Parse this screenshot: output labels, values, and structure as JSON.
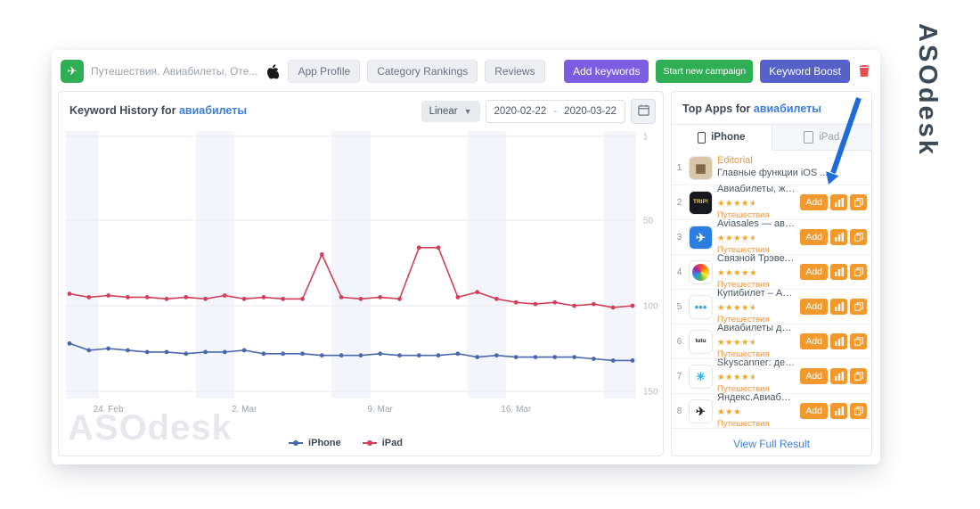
{
  "logo": {
    "text": "ASOdesk"
  },
  "colors": {
    "accent_blue": "#3b7dd8",
    "orange": "#f2992e",
    "purple": "#7c5ce0",
    "green": "#2fae54",
    "indigo": "#5560c8",
    "red": "#e05252",
    "iphone_line": "#4a67ad",
    "ipad_line": "#d23f58"
  },
  "header": {
    "app_title": "Путешествия. Авиабилеты, Оте...",
    "nav": [
      {
        "label": "App Profile"
      },
      {
        "label": "Category Rankings"
      },
      {
        "label": "Reviews"
      }
    ],
    "add_keywords": "Add keywords",
    "start_campaign": "Start new campaign",
    "keyword_boost": "Keyword Boost"
  },
  "chart_panel": {
    "title_prefix": "Keyword History for",
    "keyword": "авиабилеты",
    "scale": "Linear",
    "date_from": "2020-02-22",
    "date_sep": "-",
    "date_to": "2020-03-22",
    "watermark": "ASOdesk"
  },
  "chart_data": {
    "type": "line",
    "title": "Keyword History for авиабилеты",
    "x": [
      "2020-02-22",
      "2020-02-23",
      "2020-02-24",
      "2020-02-25",
      "2020-02-26",
      "2020-02-27",
      "2020-02-28",
      "2020-02-29",
      "2020-03-01",
      "2020-03-02",
      "2020-03-03",
      "2020-03-04",
      "2020-03-05",
      "2020-03-06",
      "2020-03-07",
      "2020-03-08",
      "2020-03-09",
      "2020-03-10",
      "2020-03-11",
      "2020-03-12",
      "2020-03-13",
      "2020-03-14",
      "2020-03-15",
      "2020-03-16",
      "2020-03-17",
      "2020-03-18",
      "2020-03-19",
      "2020-03-20",
      "2020-03-21",
      "2020-03-22"
    ],
    "y_inverted": true,
    "ylim": [
      1,
      150
    ],
    "y_ticks": [
      1,
      50,
      100,
      150
    ],
    "x_ticks": [
      {
        "index": 2,
        "label": "24. Feb"
      },
      {
        "index": 9,
        "label": "2. Mar"
      },
      {
        "index": 16,
        "label": "9. Mar"
      },
      {
        "index": 23,
        "label": "16. Mar"
      }
    ],
    "weekend_bands": [
      [
        0,
        1
      ],
      [
        7,
        8
      ],
      [
        14,
        15
      ],
      [
        21,
        22
      ],
      [
        28,
        29
      ]
    ],
    "grid": true,
    "legend_position": "bottom",
    "series": [
      {
        "name": "iPhone",
        "color": "#4a67ad",
        "values": [
          122,
          126,
          125,
          126,
          127,
          127,
          128,
          127,
          127,
          126,
          128,
          128,
          128,
          129,
          129,
          129,
          128,
          129,
          129,
          129,
          128,
          130,
          129,
          130,
          130,
          130,
          130,
          131,
          132,
          132
        ]
      },
      {
        "name": "iPad",
        "color": "#d23f58",
        "values": [
          93,
          95,
          94,
          95,
          95,
          96,
          95,
          96,
          94,
          96,
          95,
          96,
          96,
          70,
          95,
          96,
          95,
          96,
          66,
          66,
          95,
          92,
          96,
          98,
          99,
          98,
          100,
          99,
          101,
          100
        ]
      }
    ]
  },
  "top_apps": {
    "title_prefix": "Top Apps for",
    "keyword": "авиабилеты",
    "tabs": [
      {
        "label": "iPhone"
      },
      {
        "label": "iPad"
      }
    ],
    "active_tab": 0,
    "add_label": "Add",
    "view_full_result": "View Full Result",
    "apps": [
      {
        "rank": 1,
        "name": "Editorial",
        "name_color": "#f0953c",
        "subtitle": "Главные функции iOS ...",
        "icon": {
          "bg": "#d9c6a8",
          "label": "▦",
          "color": "#7a5c3e"
        },
        "buttons": false
      },
      {
        "rank": 2,
        "name": "Авиабилеты, жд ...",
        "rating": 4.5,
        "stars": 5,
        "category": "Путешествия",
        "icon": {
          "bg": "#17191f",
          "label": "TRIP!",
          "color": "#ffd43a"
        },
        "buttons": true
      },
      {
        "rank": 3,
        "name": "Aviasales — авиа...",
        "rating": 4.5,
        "stars": 5,
        "category": "Путешествия",
        "icon": {
          "bg": "#2a7de1",
          "label": "✈",
          "color": "#ffffff"
        },
        "buttons": true
      },
      {
        "rank": 4,
        "name": "Связной Трэвел: ...",
        "rating": 5,
        "stars": 5,
        "category": "Путешествия",
        "icon": {
          "bg": "#ffffff",
          "swirl": true
        },
        "buttons": true
      },
      {
        "rank": 5,
        "name": "Купибилет – Ави...",
        "rating": 4.5,
        "stars": 5,
        "category": "Путешествия",
        "icon": {
          "bg": "#ffffff",
          "label": "•••",
          "color": "#38a1e6"
        },
        "buttons": true
      },
      {
        "rank": 6,
        "name": "Авиабилеты деш...",
        "rating": 4.5,
        "stars": 5,
        "category": "Путешествия",
        "icon": {
          "bg": "#ffffff",
          "label": "tutu",
          "color": "#222222"
        },
        "buttons": true
      },
      {
        "rank": 7,
        "name": "Skyscanner: деше...",
        "rating": 4.5,
        "stars": 5,
        "category": "Путешествия",
        "icon": {
          "bg": "#ffffff",
          "label": "☀",
          "color": "#2db1e8"
        },
        "buttons": true
      },
      {
        "rank": 8,
        "name": "Яндекс.Авиабиле...",
        "rating": 3,
        "stars": 3,
        "category": "Путешествия",
        "icon": {
          "bg": "#ffffff",
          "label": "✈",
          "color": "#222222"
        },
        "buttons": true
      }
    ]
  }
}
